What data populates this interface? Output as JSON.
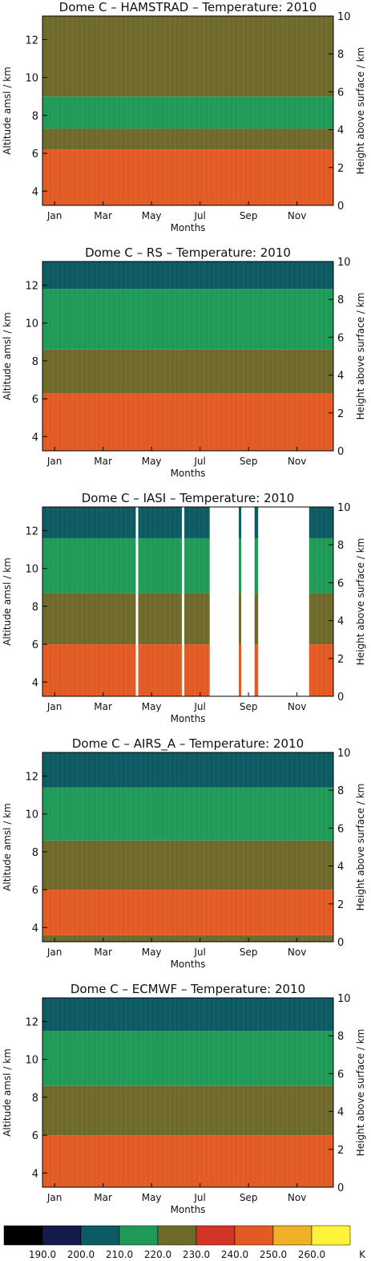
{
  "colorbar": {
    "unit": "K",
    "colors": [
      "#000000",
      "#141a4a",
      "#0d5a63",
      "#1f9a57",
      "#6f6a2c",
      "#d03526",
      "#e35b24",
      "#eeb128",
      "#fff23a"
    ],
    "tick_labels": [
      "190.0",
      "200.0",
      "210.0",
      "220.0",
      "230.0",
      "240.0",
      "250.0",
      "260.0"
    ]
  },
  "chart_data": [
    {
      "type": "heatmap",
      "title": "Dome C – HAMSTRAD – Temperature: 2010",
      "xlabel": "Months",
      "ylabel": "Altitude amsl / km",
      "ylabel_right": "Height above surface / km",
      "xticks": [
        "Jan",
        "Mar",
        "May",
        "Jul",
        "Sep",
        "Nov"
      ],
      "yticks_left": [
        "4",
        "6",
        "8",
        "10",
        "12"
      ],
      "yticks_right": [
        "0",
        "2",
        "4",
        "6",
        "8",
        "10"
      ],
      "ylim_left": [
        3.25,
        13.25
      ],
      "ylim_right": [
        0,
        10
      ],
      "gaps": [],
      "bands": [
        {
          "top_km": 6.2,
          "temperature_K": 240
        },
        {
          "top_km": 7.3,
          "temperature_K": 220
        },
        {
          "top_km": 9.0,
          "temperature_K": 210
        },
        {
          "top_km": 13.25,
          "temperature_K": 220
        }
      ]
    },
    {
      "type": "heatmap",
      "title": "Dome C – RS – Temperature: 2010",
      "xlabel": "Months",
      "ylabel": "Altitude amsl / km",
      "ylabel_right": "Height above surface / km",
      "xticks": [
        "Jan",
        "Mar",
        "May",
        "Jul",
        "Sep",
        "Nov"
      ],
      "yticks_left": [
        "4",
        "6",
        "8",
        "10",
        "12"
      ],
      "yticks_right": [
        "0",
        "2",
        "4",
        "6",
        "8",
        "10"
      ],
      "ylim_left": [
        3.25,
        13.25
      ],
      "ylim_right": [
        0,
        10
      ],
      "gaps": [],
      "bands": [
        {
          "top_km": 6.3,
          "temperature_K": 240
        },
        {
          "top_km": 8.6,
          "temperature_K": 220
        },
        {
          "top_km": 11.8,
          "temperature_K": 210
        },
        {
          "top_km": 13.25,
          "temperature_K": 200
        }
      ]
    },
    {
      "type": "heatmap",
      "title": "Dome C – IASI – Temperature: 2010",
      "xlabel": "Months",
      "ylabel": "Altitude amsl / km",
      "ylabel_right": "Height above surface / km",
      "xticks": [
        "Jan",
        "Mar",
        "May",
        "Jul",
        "Sep",
        "Nov"
      ],
      "yticks_left": [
        "4",
        "6",
        "8",
        "10",
        "12"
      ],
      "yticks_right": [
        "0",
        "2",
        "4",
        "6",
        "8",
        "10"
      ],
      "ylim_left": [
        3.25,
        13.25
      ],
      "ylim_right": [
        0,
        10
      ],
      "gaps": [
        [
          4.85,
          4.95
        ],
        [
          6.75,
          6.85
        ],
        [
          7.9,
          9.1
        ],
        [
          9.2,
          9.75
        ],
        [
          9.9,
          12.0
        ]
      ],
      "bands": [
        {
          "top_km": 6.0,
          "temperature_K": 240
        },
        {
          "top_km": 8.7,
          "temperature_K": 220
        },
        {
          "top_km": 11.6,
          "temperature_K": 210
        },
        {
          "top_km": 13.25,
          "temperature_K": 200
        }
      ]
    },
    {
      "type": "heatmap",
      "title": "Dome C – AIRS_A – Temperature: 2010",
      "xlabel": "Months",
      "ylabel": "Altitude amsl / km",
      "ylabel_right": "Height above surface / km",
      "xticks": [
        "Jan",
        "Mar",
        "May",
        "Jul",
        "Sep",
        "Nov"
      ],
      "yticks_left": [
        "4",
        "6",
        "8",
        "10",
        "12"
      ],
      "yticks_right": [
        "0",
        "2",
        "4",
        "6",
        "8",
        "10"
      ],
      "ylim_left": [
        3.25,
        13.25
      ],
      "ylim_right": [
        0,
        10
      ],
      "gaps": [
        [
          0.25,
          0.95
        ]
      ],
      "bands": [
        {
          "top_km": 3.6,
          "temperature_K": 220
        },
        {
          "top_km": 6.0,
          "temperature_K": 240
        },
        {
          "top_km": 8.6,
          "temperature_K": 220
        },
        {
          "top_km": 11.4,
          "temperature_K": 210
        },
        {
          "top_km": 13.25,
          "temperature_K": 200
        }
      ]
    },
    {
      "type": "heatmap",
      "title": "Dome C – ECMWF – Temperature: 2010",
      "xlabel": "Months",
      "ylabel": "Altitude amsl / km",
      "ylabel_right": "Height above surface / km",
      "xticks": [
        "Jan",
        "Mar",
        "May",
        "Jul",
        "Sep",
        "Nov"
      ],
      "yticks_left": [
        "4",
        "6",
        "8",
        "10",
        "12"
      ],
      "yticks_right": [
        "0",
        "2",
        "4",
        "6",
        "8",
        "10"
      ],
      "ylim_left": [
        3.25,
        13.25
      ],
      "ylim_right": [
        0,
        10
      ],
      "gaps": [],
      "bands": [
        {
          "top_km": 6.0,
          "temperature_K": 240
        },
        {
          "top_km": 8.6,
          "temperature_K": 220
        },
        {
          "top_km": 11.5,
          "temperature_K": 210
        },
        {
          "top_km": 13.25,
          "temperature_K": 200
        }
      ]
    }
  ]
}
